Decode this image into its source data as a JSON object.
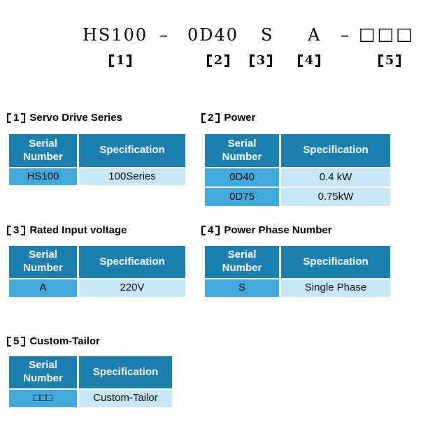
{
  "model_code": {
    "segments": [
      "HS100",
      "–",
      "0D40",
      "S",
      "A",
      "–",
      "□□□"
    ],
    "markers": [
      "1",
      "2",
      "3",
      "4",
      "5"
    ]
  },
  "table_headers": {
    "serial": "Serial Number",
    "spec": "Specification"
  },
  "colors": {
    "table_header_bg": "#1C7FAE",
    "serial_cell_bg": "#41A9DC",
    "spec_cell_bg": "#C7E7F7",
    "text": "#000000"
  },
  "sections": [
    {
      "number": "1",
      "title": "Servo Drive Series",
      "rows": [
        {
          "serial": "HS100",
          "spec": "100Series"
        }
      ]
    },
    {
      "number": "2",
      "title": "Power",
      "rows": [
        {
          "serial": "0D40",
          "spec": "0.4 kW"
        },
        {
          "serial": "0D75",
          "spec": "0.75kW"
        }
      ]
    },
    {
      "number": "3",
      "title": "Rated Input voltage",
      "rows": [
        {
          "serial": "A",
          "spec": "220V"
        }
      ]
    },
    {
      "number": "4",
      "title": "Power Phase Number",
      "rows": [
        {
          "serial": "S",
          "spec": "Single Phase"
        }
      ]
    },
    {
      "number": "5",
      "title": "Custom-Tailor",
      "rows": [
        {
          "serial": "□□□",
          "spec": "Custom-Tailor"
        }
      ]
    }
  ]
}
